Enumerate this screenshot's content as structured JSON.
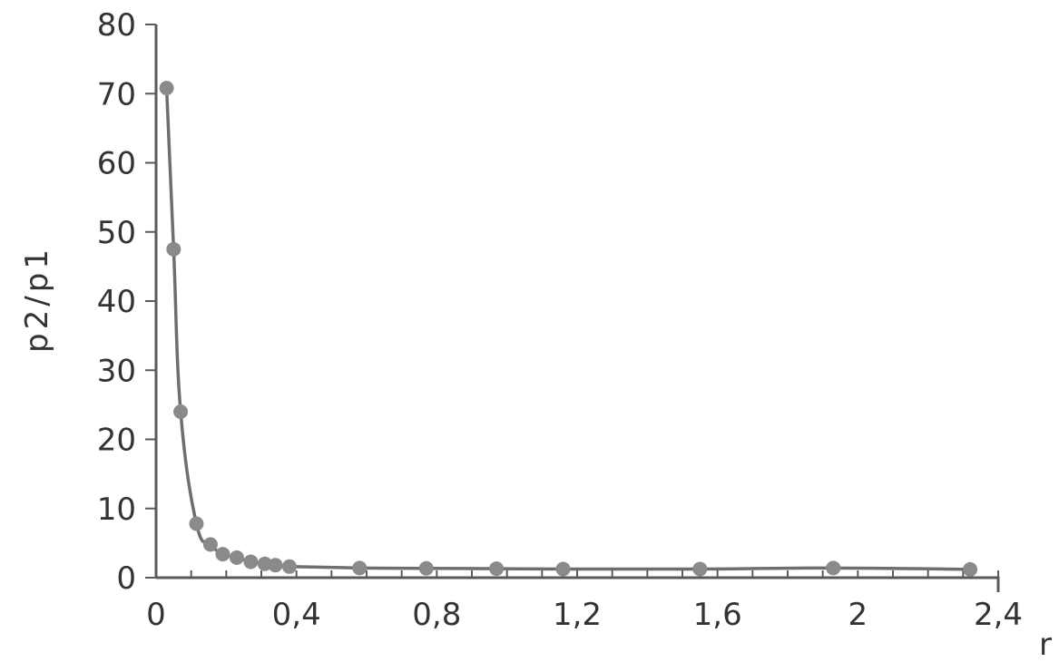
{
  "chart_data": {
    "type": "scatter",
    "title": "",
    "xlabel": "r",
    "ylabel": "p2/p1",
    "xlim": [
      0,
      2.4
    ],
    "ylim": [
      0,
      80
    ],
    "x_ticks": [
      "0",
      "0,4",
      "0,8",
      "1,2",
      "1,6",
      "2",
      "2,4"
    ],
    "y_ticks": [
      "0",
      "10",
      "20",
      "30",
      "40",
      "50",
      "60",
      "70",
      "80"
    ],
    "x_minor_step": 0.1,
    "grid": false,
    "legend": "none",
    "point_color": "#8a8a8a",
    "line_color": "#6e6e6e",
    "series": [
      {
        "x": [
          0.03,
          0.05,
          0.07,
          0.115,
          0.155,
          0.19,
          0.23,
          0.27,
          0.31,
          0.34,
          0.38,
          0.58,
          0.77,
          0.97,
          1.16,
          1.55,
          1.93,
          2.32
        ],
        "y": [
          70.8,
          47.5,
          24,
          7.8,
          4.8,
          3.4,
          2.9,
          2.3,
          2.0,
          1.8,
          1.6,
          1.4,
          1.35,
          1.3,
          1.25,
          1.25,
          1.4,
          1.2
        ]
      }
    ]
  }
}
